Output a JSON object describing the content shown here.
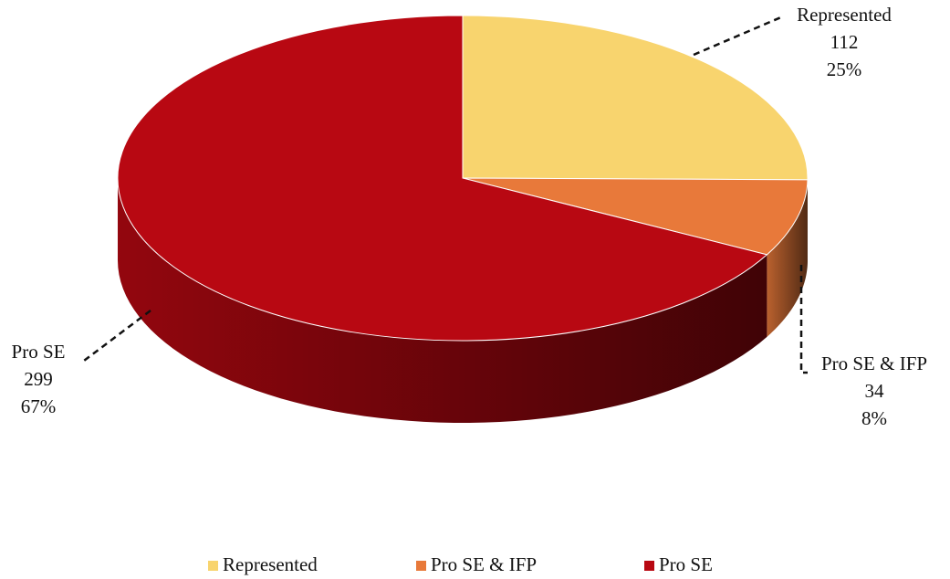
{
  "chart_data": {
    "type": "pie",
    "categories": [
      "Represented",
      "Pro SE & IFP",
      "Pro SE"
    ],
    "values": [
      112,
      34,
      299
    ],
    "percent_labels": [
      "25%",
      "8%",
      "67%"
    ],
    "colors": [
      "#f8d46e",
      "#e8793a",
      "#b80812"
    ],
    "legend": "bottom"
  }
}
